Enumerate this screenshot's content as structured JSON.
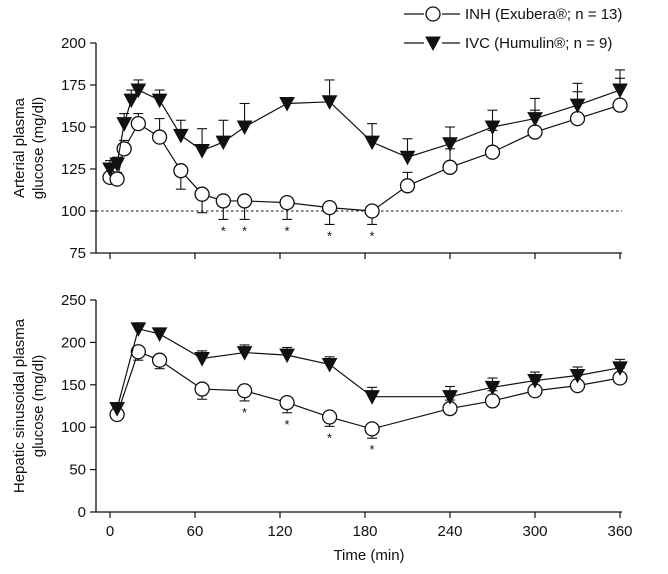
{
  "legend": [
    {
      "label": "INH (Exubera®; n = 13)",
      "marker": "open-circle"
    },
    {
      "label": "IVC (Humulin®; n = 9)",
      "marker": "filled-down-triangle"
    }
  ],
  "chart_data": [
    {
      "type": "line",
      "ylabel": "Arterial plasma glucose (mg/dl)",
      "ylim": [
        75,
        200
      ],
      "yticks": [
        75,
        100,
        125,
        150,
        175,
        200
      ],
      "xlim": [
        0,
        360
      ],
      "xticks": [
        0,
        60,
        120,
        180,
        240,
        300,
        360
      ],
      "reference_line": 100,
      "series": [
        {
          "name": "INH (Exubera®; n = 13)",
          "marker": "open-circle",
          "x": [
            0,
            5,
            10,
            20,
            35,
            50,
            65,
            80,
            95,
            125,
            155,
            185,
            210,
            240,
            270,
            300,
            330,
            360
          ],
          "y": [
            120,
            119,
            137,
            152,
            144,
            124,
            110,
            106,
            106,
            105,
            102,
            100,
            115,
            126,
            135,
            147,
            155,
            163
          ],
          "error": [
            3,
            4,
            5,
            6,
            11,
            11,
            11,
            11,
            11,
            10,
            10,
            8,
            8,
            11,
            13,
            13,
            16,
            16
          ]
        },
        {
          "name": "IVC (Humulin®; n = 9)",
          "marker": "filled-down-triangle",
          "x": [
            0,
            5,
            10,
            15,
            20,
            35,
            50,
            65,
            80,
            95,
            125,
            155,
            185,
            210,
            240,
            270,
            300,
            330,
            360
          ],
          "y": [
            125,
            128,
            152,
            166,
            172,
            166,
            145,
            136,
            141,
            150,
            164,
            165,
            141,
            132,
            140,
            150,
            155,
            163,
            172
          ],
          "error": [
            5,
            4,
            6,
            6,
            6,
            6,
            9,
            13,
            13,
            14,
            3,
            13,
            11,
            11,
            10,
            10,
            12,
            13,
            12
          ]
        }
      ],
      "significance_x": [
        80,
        95,
        125,
        155,
        185
      ]
    },
    {
      "type": "line",
      "xlabel": "Time (min)",
      "ylabel": "Hepatic sinusoidal plasma glucose (mg/dl)",
      "ylim": [
        0,
        250
      ],
      "yticks": [
        0,
        50,
        100,
        150,
        200,
        250
      ],
      "xlim": [
        0,
        360
      ],
      "xticks": [
        0,
        60,
        120,
        180,
        240,
        300,
        360
      ],
      "series": [
        {
          "name": "INH (Exubera®; n = 13)",
          "marker": "open-circle",
          "x": [
            5,
            20,
            35,
            65,
            95,
            125,
            155,
            185,
            240,
            270,
            300,
            330,
            360
          ],
          "y": [
            115,
            189,
            179,
            145,
            143,
            129,
            112,
            98,
            122,
            131,
            143,
            149,
            158
          ],
          "error": [
            5,
            10,
            10,
            12,
            12,
            12,
            11,
            11,
            10,
            12,
            11,
            12,
            12
          ]
        },
        {
          "name": "IVC (Humulin®; n = 9)",
          "marker": "filled-down-triangle",
          "x": [
            5,
            20,
            35,
            65,
            95,
            125,
            155,
            185,
            240,
            270,
            300,
            330,
            360
          ],
          "y": [
            122,
            216,
            210,
            181,
            188,
            185,
            174,
            136,
            136,
            147,
            155,
            161,
            170
          ],
          "error": [
            5,
            7,
            7,
            9,
            9,
            9,
            9,
            11,
            12,
            11,
            10,
            10,
            10
          ]
        }
      ],
      "significance_x": [
        95,
        125,
        155,
        185
      ]
    }
  ],
  "sig_symbol": "*"
}
